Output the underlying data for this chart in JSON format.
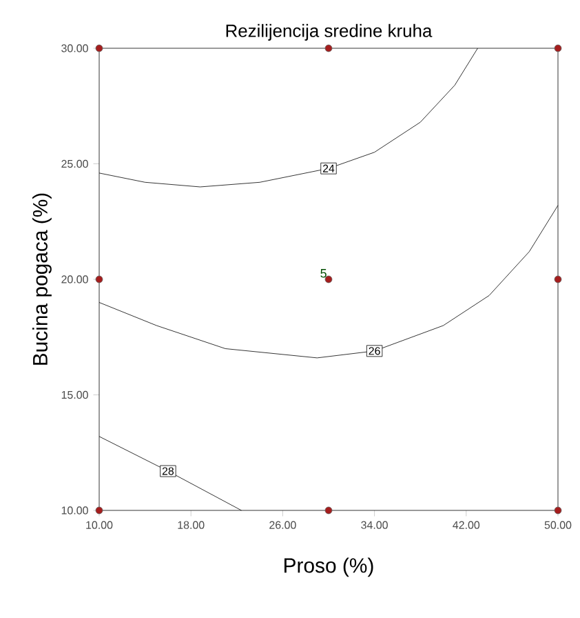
{
  "chart_data": {
    "type": "line",
    "title": "Rezilijencija sredine kruha",
    "xlabel": "Proso (%)",
    "ylabel": "Bucina pogaca (%)",
    "xlim": [
      10,
      50
    ],
    "ylim": [
      10,
      30
    ],
    "xticks": [
      {
        "value": 10,
        "label": "10.00"
      },
      {
        "value": 18,
        "label": "18.00"
      },
      {
        "value": 26,
        "label": "26.00"
      },
      {
        "value": 34,
        "label": "34.00"
      },
      {
        "value": 42,
        "label": "42.00"
      },
      {
        "value": 50,
        "label": "50.00"
      }
    ],
    "yticks": [
      {
        "value": 10,
        "label": "10.00"
      },
      {
        "value": 15,
        "label": "15.00"
      },
      {
        "value": 20,
        "label": "20.00"
      },
      {
        "value": 25,
        "label": "25.00"
      },
      {
        "value": 30,
        "label": "30.00"
      }
    ],
    "series": [
      {
        "name": "24",
        "color": "#000000",
        "x": [
          10,
          14,
          18.8,
          24,
          30,
          34,
          38,
          41,
          43
        ],
        "values": [
          24.6,
          24.2,
          24.0,
          24.2,
          24.8,
          25.5,
          26.8,
          28.4,
          30
        ]
      },
      {
        "name": "26",
        "color": "#000000",
        "x": [
          10,
          15,
          21,
          29,
          34,
          40,
          44,
          47.5,
          50
        ],
        "values": [
          19.0,
          18.0,
          17.0,
          16.6,
          16.9,
          18.0,
          19.3,
          21.2,
          23.2
        ]
      },
      {
        "name": "28",
        "color": "#000000",
        "x": [
          10,
          16,
          22.4
        ],
        "values": [
          13.2,
          11.7,
          10
        ]
      },
      {
        "type": "scatter",
        "color": "#a51d1d",
        "x": [
          10,
          10,
          10,
          30,
          30,
          30,
          50,
          50,
          50
        ],
        "values": [
          10,
          20,
          30,
          10,
          20,
          30,
          10,
          20,
          30
        ]
      }
    ],
    "annotations": [
      {
        "text": "5",
        "x": 30,
        "y": 20
      }
    ]
  }
}
